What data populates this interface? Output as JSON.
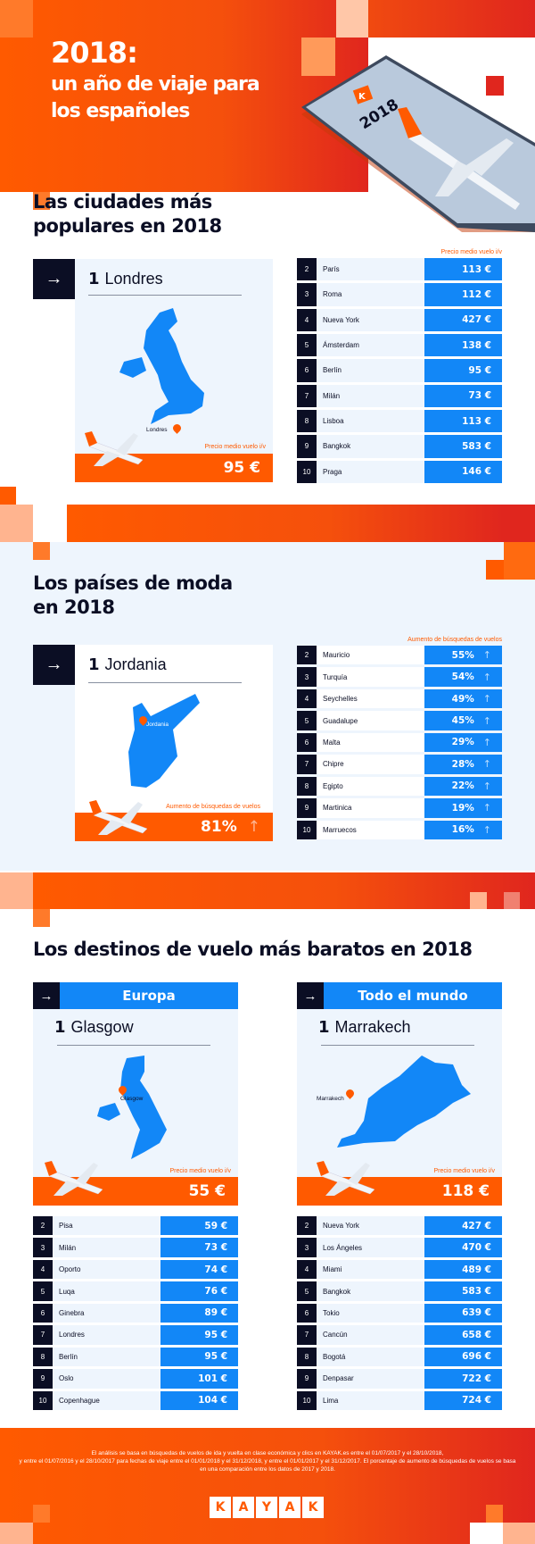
{
  "header": {
    "title_year": "2018:",
    "title_line1": "un año de viaje para",
    "title_line2": "los españoles",
    "phone_label": "2018",
    "phone_logo": "K"
  },
  "section1": {
    "title_line1": "Las ciudades más",
    "title_line2": "populares en 2018",
    "top": {
      "rank": "1",
      "name": "Londres",
      "map_label": "Londres",
      "caption": "Precio medio vuelo i/v",
      "value": "95 €"
    },
    "list_header": "Precio medio vuelo i/v",
    "rows": [
      {
        "rank": "2",
        "name": "París",
        "value": "113 €"
      },
      {
        "rank": "3",
        "name": "Roma",
        "value": "112 €"
      },
      {
        "rank": "4",
        "name": "Nueva York",
        "value": "427 €"
      },
      {
        "rank": "5",
        "name": "Ámsterdam",
        "value": "138 €"
      },
      {
        "rank": "6",
        "name": "Berlín",
        "value": "95 €"
      },
      {
        "rank": "7",
        "name": "Milán",
        "value": "73 €"
      },
      {
        "rank": "8",
        "name": "Lisboa",
        "value": "113 €"
      },
      {
        "rank": "9",
        "name": "Bangkok",
        "value": "583 €"
      },
      {
        "rank": "10",
        "name": "Praga",
        "value": "146 €"
      }
    ]
  },
  "section2": {
    "title_line1": "Los países de moda",
    "title_line2": "en 2018",
    "top": {
      "rank": "1",
      "name": "Jordania",
      "map_label": "Jordania",
      "caption": "Aumento de búsquedas de vuelos",
      "value": "81%"
    },
    "list_header": "Aumento de búsquedas de vuelos",
    "rows": [
      {
        "rank": "2",
        "name": "Mauricio",
        "value": "55%"
      },
      {
        "rank": "3",
        "name": "Turquía",
        "value": "54%"
      },
      {
        "rank": "4",
        "name": "Seychelles",
        "value": "49%"
      },
      {
        "rank": "5",
        "name": "Guadalupe",
        "value": "45%"
      },
      {
        "rank": "6",
        "name": "Malta",
        "value": "29%"
      },
      {
        "rank": "7",
        "name": "Chipre",
        "value": "28%"
      },
      {
        "rank": "8",
        "name": "Egipto",
        "value": "22%"
      },
      {
        "rank": "9",
        "name": "Martinica",
        "value": "19%"
      },
      {
        "rank": "10",
        "name": "Marruecos",
        "value": "16%"
      }
    ]
  },
  "section3": {
    "title": "Los destinos de vuelo más baratos en 2018",
    "europe": {
      "heading": "Europa",
      "rank": "1",
      "name": "Glasgow",
      "map_label": "Glasgow",
      "caption": "Precio medio vuelo i/v",
      "value": "55 €",
      "rows": [
        {
          "rank": "2",
          "name": "Pisa",
          "value": "59 €"
        },
        {
          "rank": "3",
          "name": "Milán",
          "value": "73 €"
        },
        {
          "rank": "4",
          "name": "Oporto",
          "value": "74 €"
        },
        {
          "rank": "5",
          "name": "Luqa",
          "value": "76 €"
        },
        {
          "rank": "6",
          "name": "Ginebra",
          "value": "89 €"
        },
        {
          "rank": "7",
          "name": "Londres",
          "value": "95 €"
        },
        {
          "rank": "8",
          "name": "Berlín",
          "value": "95 €"
        },
        {
          "rank": "9",
          "name": "Oslo",
          "value": "101 €"
        },
        {
          "rank": "10",
          "name": "Copenhague",
          "value": "104 €"
        }
      ]
    },
    "world": {
      "heading": "Todo el mundo",
      "rank": "1",
      "name": "Marrakech",
      "map_label": "Marrakech",
      "caption": "Precio medio vuelo i/v",
      "value": "118 €",
      "rows": [
        {
          "rank": "2",
          "name": "Nueva York",
          "value": "427 €"
        },
        {
          "rank": "3",
          "name": "Los Ángeles",
          "value": "470 €"
        },
        {
          "rank": "4",
          "name": "Miami",
          "value": "489 €"
        },
        {
          "rank": "5",
          "name": "Bangkok",
          "value": "583 €"
        },
        {
          "rank": "6",
          "name": "Tokio",
          "value": "639 €"
        },
        {
          "rank": "7",
          "name": "Cancún",
          "value": "658 €"
        },
        {
          "rank": "8",
          "name": "Bogotá",
          "value": "696 €"
        },
        {
          "rank": "9",
          "name": "Denpasar",
          "value": "722 €"
        },
        {
          "rank": "10",
          "name": "Lima",
          "value": "724 €"
        }
      ]
    }
  },
  "footer": {
    "note_line1": "El análisis se basa en búsquedas de vuelos de ida y vuelta en clase económica y clics en KAYAK.es entre el 01/07/2017 y el 28/10/2018,",
    "note_line2": "y entre el 01/07/2016 y el 28/10/2017 para fechas de viaje entre el 01/01/2018 y el 31/12/2018, y entre el 01/01/2017 y el 31/12/2017. El porcentaje de aumento de búsquedas de vuelos se basa en una comparación entre los datos de 2017 y 2018.",
    "logo_letters": [
      "K",
      "A",
      "Y",
      "A",
      "K"
    ]
  },
  "colors": {
    "orange": "#ff5a00",
    "red": "#e0261e",
    "blue": "#1287f7",
    "navy": "#0b0e24",
    "light": "#eef5fd"
  }
}
